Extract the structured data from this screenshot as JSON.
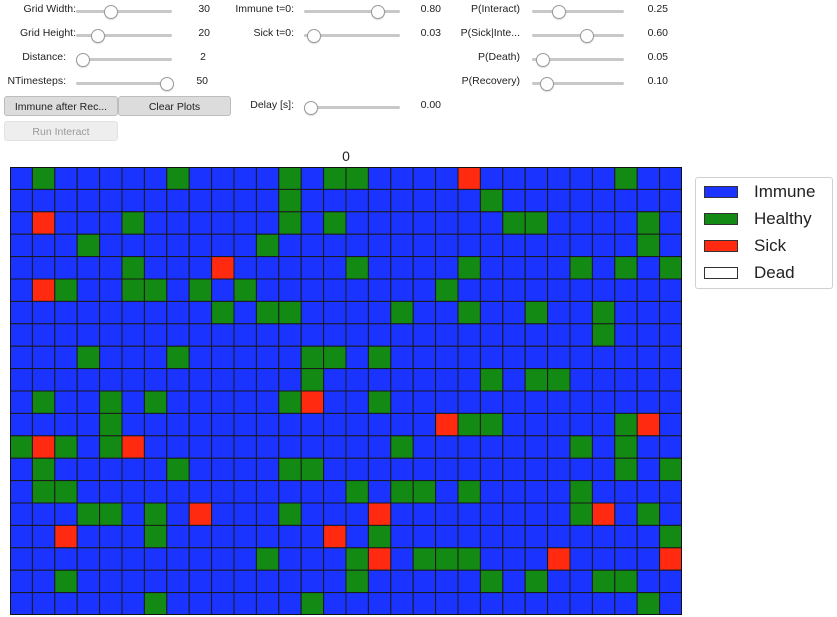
{
  "controls": {
    "grid_width": {
      "label": "Grid Width:",
      "value": "30",
      "fraction": 0.33
    },
    "grid_height": {
      "label": "Grid Height:",
      "value": "20",
      "fraction": 0.18
    },
    "distance": {
      "label": "Distance:",
      "value": "2",
      "fraction": 0.0
    },
    "ntimesteps": {
      "label": "NTimesteps:",
      "value": "50",
      "fraction": 1.0
    },
    "immune_t0": {
      "label": "Immune t=0:",
      "value": "0.80",
      "fraction": 0.8
    },
    "sick_t0": {
      "label": "Sick t=0:",
      "value": "0.03",
      "fraction": 0.03
    },
    "delay": {
      "label": "Delay [s]:",
      "value": "0.00",
      "fraction": 0.0
    },
    "p_interact": {
      "label": "P(Interact)",
      "value": "0.25",
      "fraction": 0.25
    },
    "p_sick_interact": {
      "label": "P(Sick|Inte...",
      "value": "0.60",
      "fraction": 0.6
    },
    "p_death": {
      "label": "P(Death)",
      "value": "0.05",
      "fraction": 0.05
    },
    "p_recovery": {
      "label": "P(Recovery)",
      "value": "0.10",
      "fraction": 0.1
    }
  },
  "buttons": {
    "immune_after_recovery": "Immune after Rec...",
    "clear_plots": "Clear Plots",
    "run_interact": "Run Interact"
  },
  "plot": {
    "title": "0",
    "colors": {
      "immune": "#1b33ff",
      "healthy": "#138a13",
      "sick": "#ff2a0f",
      "dead": "#ffffff"
    },
    "legend": [
      {
        "label": "Immune",
        "color": "#1b33ff"
      },
      {
        "label": "Healthy",
        "color": "#138a13"
      },
      {
        "label": "Sick",
        "color": "#ff2a0f"
      },
      {
        "label": "Dead",
        "color": "#ffffff"
      }
    ],
    "grid": [
      "IGIIIIIGIIIIGIGGIIIISIIIIIIGII",
      "IIIIIIIIIIIIGIIIIIIIIGIIIIIIII",
      "ISIIIGIIIIIIGIGIIIIIIIGGIIIIGI",
      "IIIGIIIIIIIGIIIIIIIIIIIIIIIIGI",
      "IIIIIGIIISIIIIIGIIIIGIIIIGIGIG",
      "ISGIIGGIGIGIIIIIIIIGIIIIIIIIII",
      "IIIIIIIIIGIGGIIIIGIIGIIGIIGIII",
      "IIIIIIIIIIIIIIIIIIIIIIIIIIGIII",
      "IIIGIIIGIIIIIGGIGIIIIIIIIIIIII",
      "IIIIIIIIIIIIIGIIIIIIIGIGGIIIII",
      "IGIIGIGIIIIIGSIIGIIIIIIIIIIIII",
      "IIIIGIIIIIIIIIIIIIISGGIIIIIGSI",
      "GSGIGSIIIIIIIIIIIGIIIIIIIGIGII",
      "IGIIIIIGIIIIGGIIIIIIIIIIIIIGIG",
      "IGGIIIIIIIIIIIIGIGGIGIIIIGIIII",
      "IIIGGIGISIIIGIIISIIIIIIIIGSIGI",
      "IISIIIGIIIIIIISIGIIIIIIIIIIIIG",
      "IIIIIIIIIIIGIIIGSIGGGIIISIIIIS",
      "IIGIIIIIIIIIIIIGIIIIIGIGIIGGII",
      "IIIIIIGIIIIIIGIIIIIIIIIIIIIIGI"
    ]
  }
}
